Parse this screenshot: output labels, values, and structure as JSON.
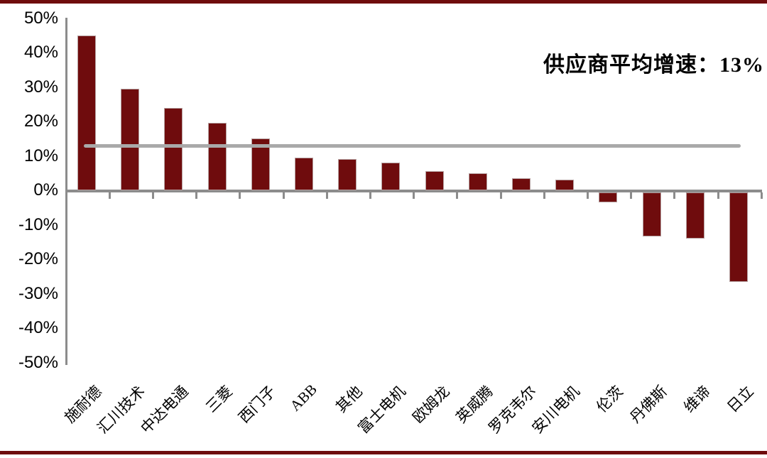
{
  "page": {
    "border_color": "#6F0C0D",
    "background": "#FFFFFF"
  },
  "chart_data": {
    "type": "bar",
    "title": "",
    "xlabel": "",
    "ylabel": "",
    "unit": "%",
    "categories": [
      "施耐德",
      "汇川技术",
      "中达电通",
      "三菱",
      "西门子",
      "ABB",
      "其他",
      "富士电机",
      "欧姆龙",
      "英威腾",
      "罗克韦尔",
      "安川电机",
      "伦茨",
      "丹佛斯",
      "维谛",
      "日立"
    ],
    "values": [
      45,
      29.5,
      24,
      19.5,
      15,
      9.5,
      9,
      8,
      5.5,
      5,
      3.5,
      3,
      -3.5,
      -13.5,
      -14,
      -26.5
    ],
    "ylim": [
      -50,
      50
    ],
    "y_ticks": [
      {
        "value": 50,
        "label": "50%"
      },
      {
        "value": 40,
        "label": "40%"
      },
      {
        "value": 30,
        "label": "30%"
      },
      {
        "value": 20,
        "label": "20%"
      },
      {
        "value": 10,
        "label": "10%"
      },
      {
        "value": 0,
        "label": "0%"
      },
      {
        "value": -10,
        "label": "-10%"
      },
      {
        "value": -20,
        "label": "-20%"
      },
      {
        "value": -30,
        "label": "-30%"
      },
      {
        "value": -40,
        "label": "-40%"
      },
      {
        "value": -50,
        "label": "-50%"
      }
    ],
    "grid": false,
    "legend_position": "none",
    "bar_color": "#6F0C0D",
    "axis_color": "#8C8C8C",
    "average_line": {
      "value": 13,
      "color": "#A9A9A9",
      "label": "供应商平均增速：13%"
    }
  }
}
